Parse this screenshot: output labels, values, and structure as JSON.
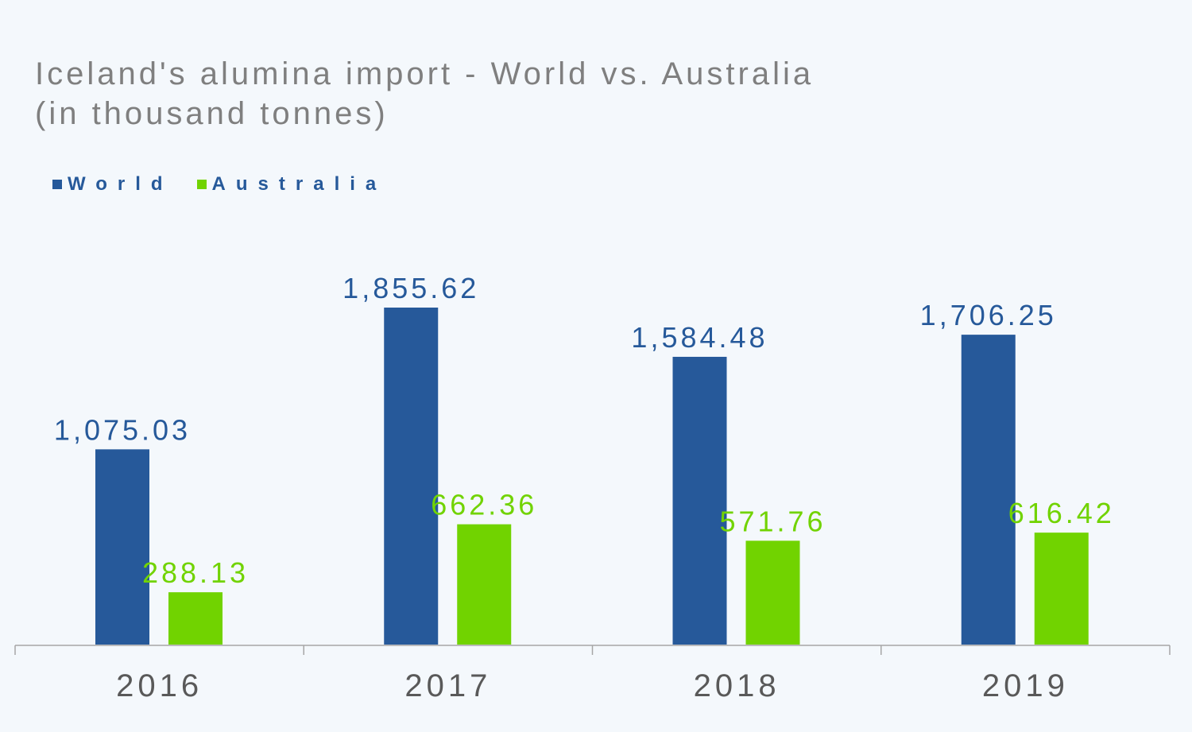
{
  "chart_data": {
    "type": "bar",
    "title": "Iceland's alumina import - World vs. Australia",
    "subtitle": "(in thousand tonnes)",
    "categories": [
      "2016",
      "2017",
      "2018",
      "2019"
    ],
    "series": [
      {
        "name": "World",
        "color": "#26599a",
        "values": [
          1075.03,
          1855.62,
          1584.48,
          1706.25
        ],
        "labels": [
          "1,075.03",
          "1,855.62",
          "1,584.48",
          "1,706.25"
        ]
      },
      {
        "name": "Australia",
        "color": "#71d300",
        "values": [
          288.13,
          662.36,
          571.76,
          616.42
        ],
        "labels": [
          "288.13",
          "662.36",
          "571.76",
          "616.42"
        ]
      }
    ],
    "ylim": [
      0,
      2000
    ],
    "grid": false,
    "legend_position": "top-left",
    "axis_color": "#a6a6a6",
    "tick_label_color": "#595959"
  }
}
